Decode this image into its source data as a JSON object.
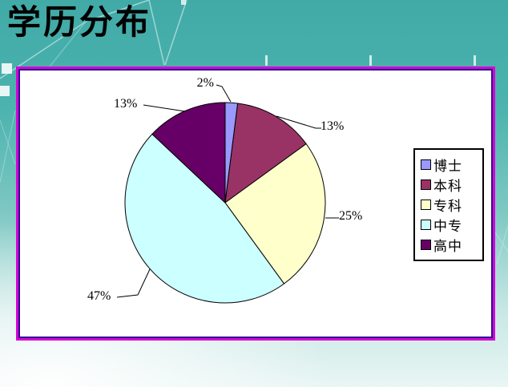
{
  "title": "学历分布",
  "chart_data": {
    "type": "pie",
    "title": "学历分布",
    "legend_position": "right-middle",
    "start_angle_deg": 0,
    "direction": "clockwise",
    "slices": [
      {
        "name": "博士",
        "value": 2,
        "label": "2%",
        "color": "#9999ff"
      },
      {
        "name": "本科",
        "value": 13,
        "label": "13%",
        "color": "#993366"
      },
      {
        "name": "专科",
        "value": 25,
        "label": "25%",
        "color": "#ffffcc"
      },
      {
        "name": "中专",
        "value": 47,
        "label": "47%",
        "color": "#ccffff"
      },
      {
        "name": "高中",
        "value": 13,
        "label": "13%",
        "color": "#660066"
      }
    ]
  },
  "colors": {
    "background_top": "#41aaa7",
    "background_bottom": "#ffffff",
    "box_border_outer": "#d503d5",
    "box_border_inner": "#2e0d92",
    "pie_outline": "#000000"
  }
}
